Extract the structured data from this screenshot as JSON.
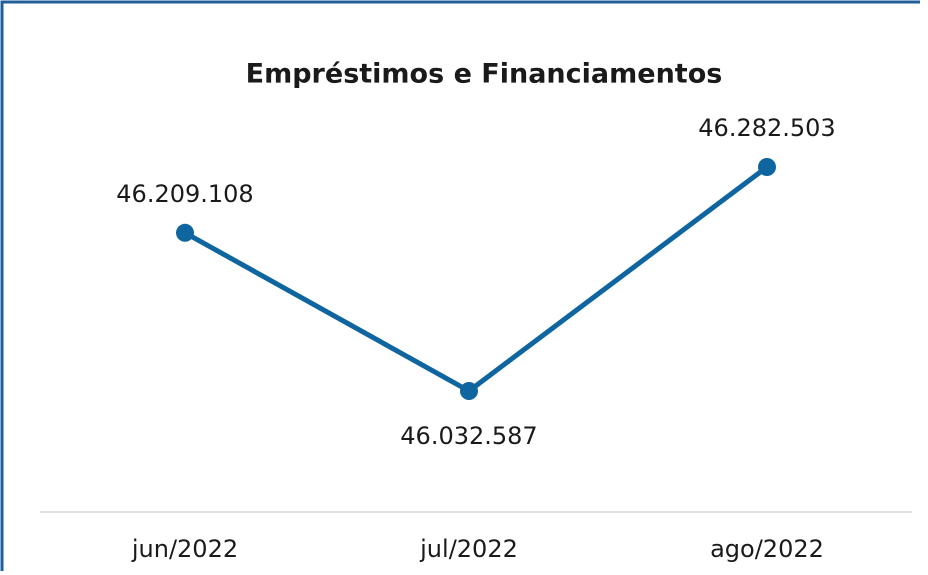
{
  "chart_data": {
    "type": "line",
    "title": "Empréstimos e Financiamentos",
    "categories": [
      "jun/2022",
      "jul/2022",
      "ago/2022"
    ],
    "series": [
      {
        "name": "Empréstimos e Financiamentos",
        "color": "#0e65a0",
        "values": [
          46209108,
          46032587,
          46282503
        ],
        "value_labels": [
          "46.209.108",
          "46.032.587",
          "46.282.503"
        ]
      }
    ]
  }
}
